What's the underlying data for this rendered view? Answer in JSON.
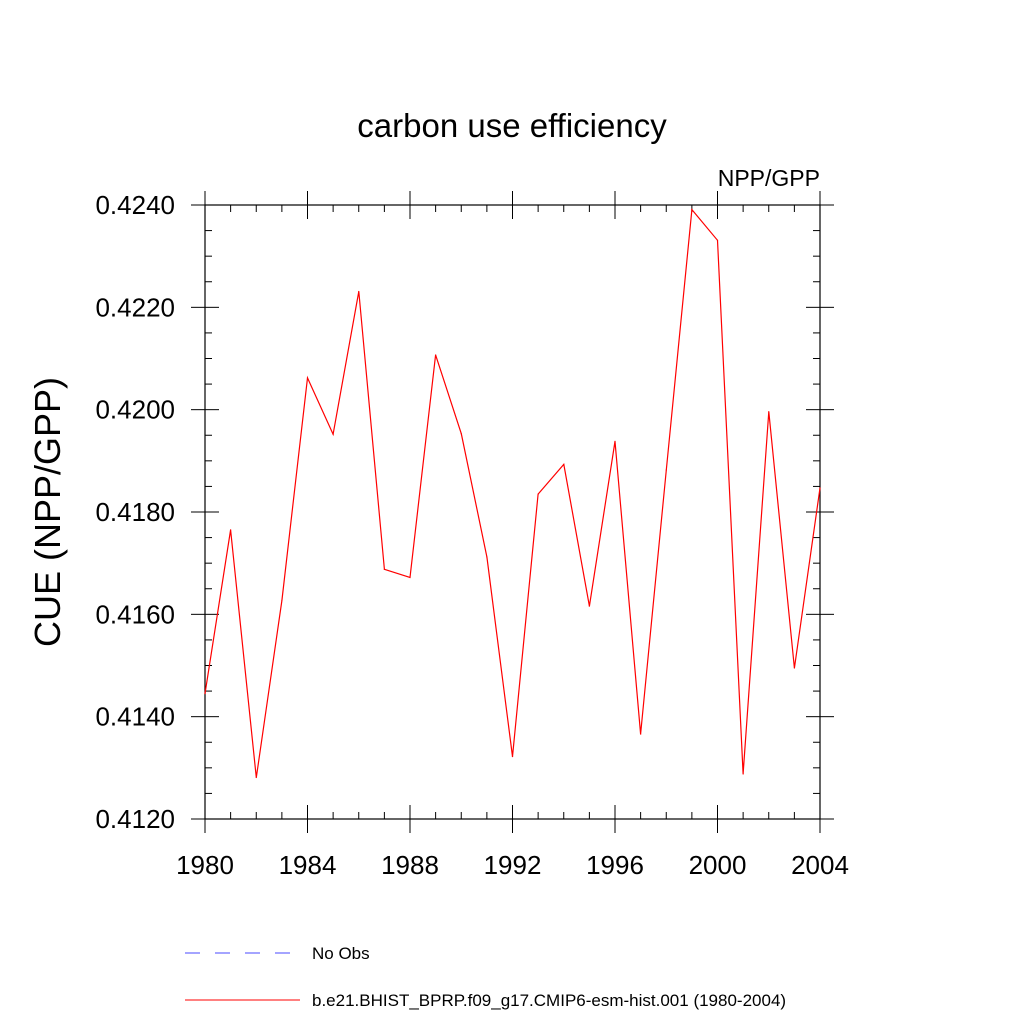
{
  "chart_data": {
    "type": "line",
    "title": "carbon use efficiency",
    "subtitle": "NPP/GPP",
    "xlabel": "",
    "ylabel": "CUE  (NPP/GPP)",
    "xlim": [
      1980,
      2004
    ],
    "ylim": [
      0.412,
      0.424
    ],
    "x_ticks": [
      1980,
      1984,
      1988,
      1992,
      1996,
      2000,
      2004
    ],
    "y_ticks": [
      0.412,
      0.414,
      0.416,
      0.418,
      0.42,
      0.422,
      0.424
    ],
    "x_tick_labels": [
      "1980",
      "1984",
      "1988",
      "1992",
      "1996",
      "2000",
      "2004"
    ],
    "y_tick_labels": [
      "0.4120",
      "0.4140",
      "0.4160",
      "0.4180",
      "0.4200",
      "0.4220",
      "0.4240"
    ],
    "grid": false,
    "legend_position": "bottom",
    "series": [
      {
        "name": "b.e21.BHIST_BPRP.f09_g17.CMIP6-esm-hist.001 (1980-2004)",
        "color": "#ff0000",
        "style": "solid",
        "x": [
          1980,
          1981,
          1982,
          1983,
          1984,
          1985,
          1986,
          1987,
          1988,
          1989,
          1990,
          1991,
          1992,
          1993,
          1994,
          1995,
          1996,
          1997,
          1998,
          1999,
          2000,
          2001,
          2002,
          2003,
          2004
        ],
        "values": [
          0.41445,
          0.41765,
          0.41281,
          0.41627,
          0.42062,
          0.41952,
          0.42231,
          0.41688,
          0.41672,
          0.42107,
          0.41953,
          0.41712,
          0.41322,
          0.41835,
          0.41893,
          0.41616,
          0.41938,
          0.41366,
          0.41882,
          0.42391,
          0.42331,
          0.41288,
          0.41996,
          0.41495,
          0.41847
        ]
      }
    ],
    "legend": [
      {
        "label": "No Obs",
        "color": "#4a4aff",
        "style": "dashed"
      },
      {
        "label": "b.e21.BHIST_BPRP.f09_g17.CMIP6-esm-hist.001 (1980-2004)",
        "color": "#ff0000",
        "style": "solid"
      }
    ]
  }
}
